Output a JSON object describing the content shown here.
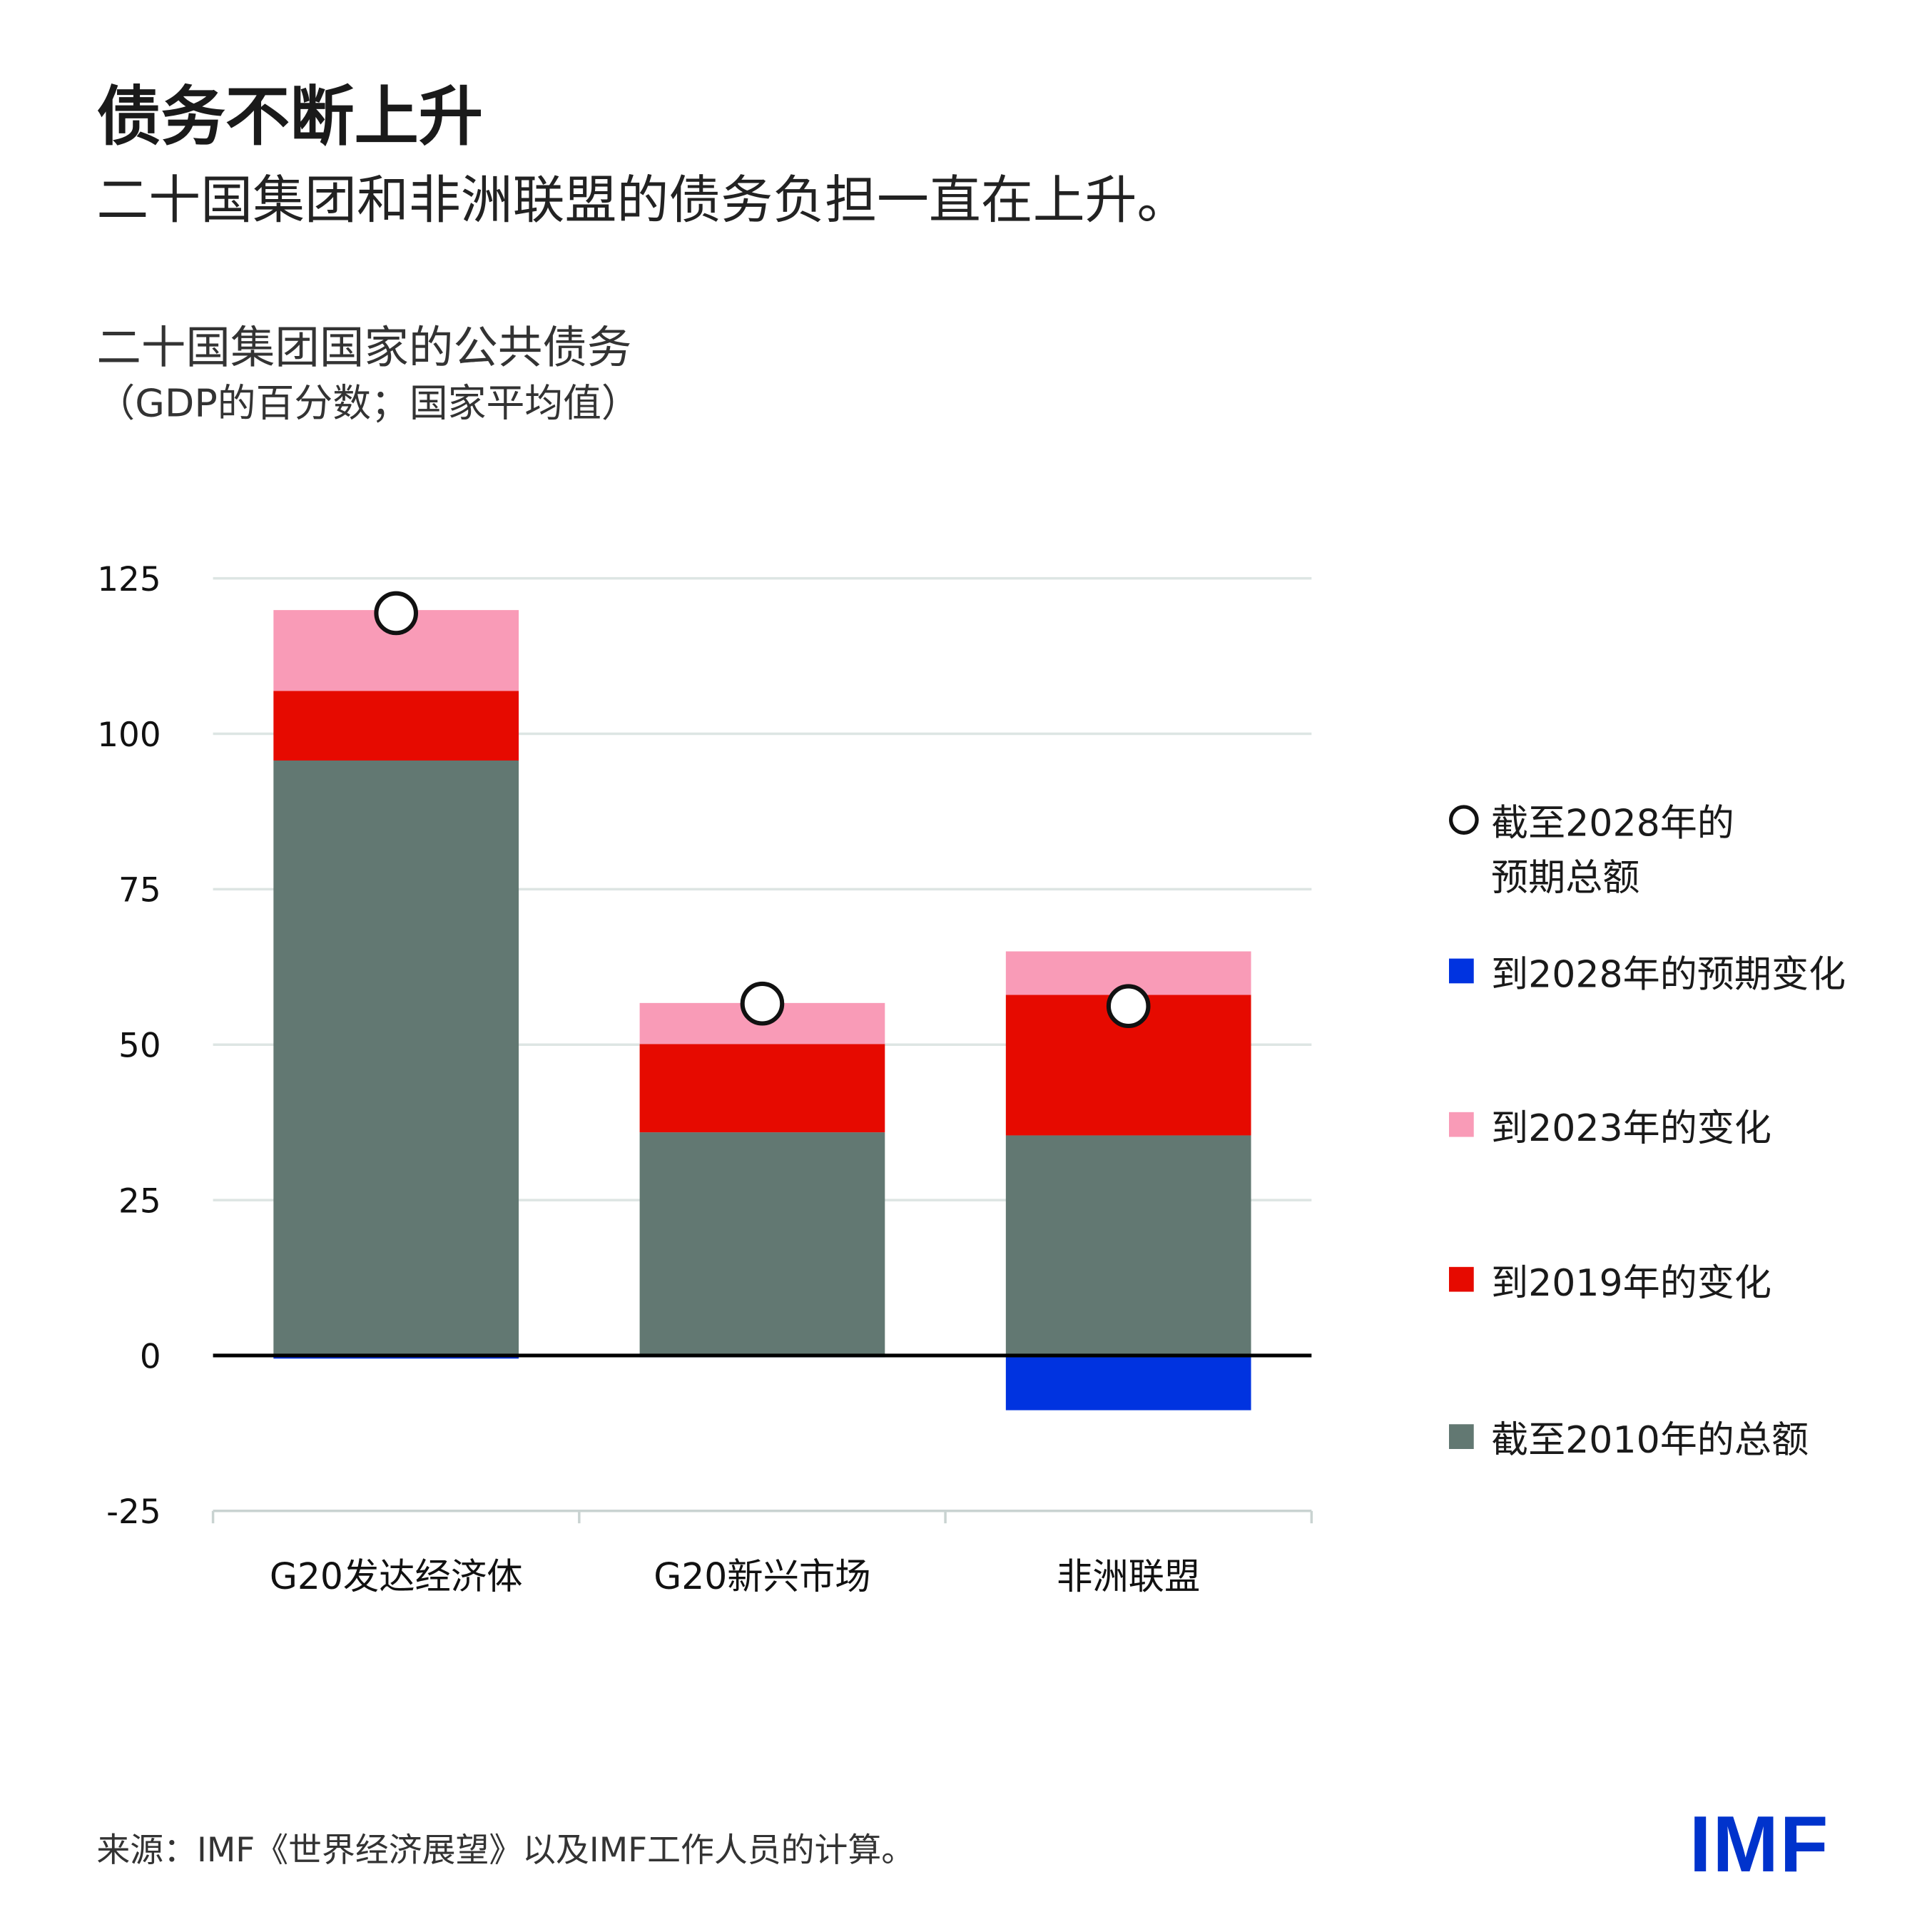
{
  "header": {
    "title": "债务不断上升",
    "subtitle": "二十国集团和非洲联盟的债务负担一直在上升。"
  },
  "chart_data": {
    "type": "bar",
    "stacked": true,
    "title": "二十国集团国家的公共债务",
    "subtitle": "（GDP的百分数；国家平均值）",
    "categories": [
      "G20发达经济体",
      "G20新兴市场",
      "非洲联盟"
    ],
    "ylim": [
      -25,
      125
    ],
    "yticks": [
      125,
      100,
      75,
      50,
      25,
      0,
      -25
    ],
    "grid": true,
    "legend_position": "right",
    "series": [
      {
        "name": "截至2010年的总额",
        "color": "#627872",
        "values": [
          95.7,
          35.9,
          35.4
        ]
      },
      {
        "name": "到2019年的变化",
        "color": "#e60a00",
        "values": [
          11.2,
          14.2,
          22.6
        ]
      },
      {
        "name": "到2023年的变化",
        "color": "#f99bb7",
        "values": [
          13.0,
          6.6,
          7.0
        ]
      },
      {
        "name": "到2028年的预期变化",
        "color": "#0033e0",
        "values": [
          -0.5,
          -0.1,
          -8.8
        ]
      }
    ],
    "markers": {
      "name": "截至2028年的预期总额",
      "values": [
        119.4,
        56.6,
        56.2
      ]
    }
  },
  "legend": [
    {
      "label_line1": "截至2028年的",
      "label_line2": "预期总额",
      "icon": "open-circle"
    },
    {
      "label_line1": "到2028年的预期变化",
      "color": "#0033e0"
    },
    {
      "label_line1": "到2023年的变化",
      "color": "#f99bb7"
    },
    {
      "label_line1": "到2019年的变化",
      "color": "#e60a00"
    },
    {
      "label_line1": "截至2010年的总额",
      "color": "#627872"
    }
  ],
  "footer": {
    "source": "来源：IMF《世界经济展望》以及IMF工作人员的计算。",
    "logo": "IMF"
  }
}
